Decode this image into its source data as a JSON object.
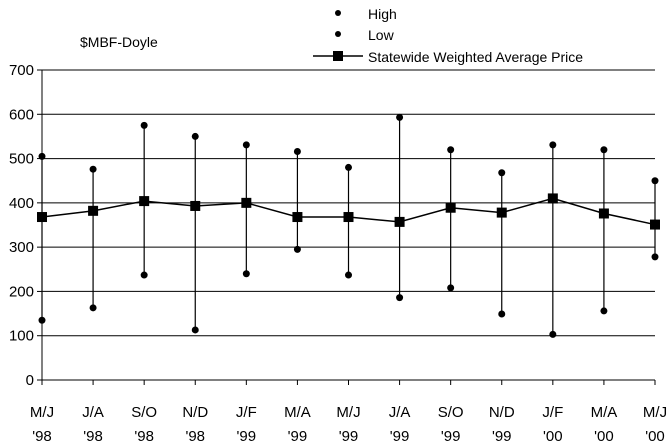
{
  "chart_data": {
    "type": "line",
    "ylabel": "$MBF-Doyle",
    "ylim": [
      0,
      700
    ],
    "yticks": [
      0,
      100,
      200,
      300,
      400,
      500,
      600,
      700
    ],
    "grid": true,
    "legend_position": "top-right",
    "categories": [
      [
        "M/J",
        "'98"
      ],
      [
        "J/A",
        "'98"
      ],
      [
        "S/O",
        "'98"
      ],
      [
        "N/D",
        "'98"
      ],
      [
        "J/F",
        "'99"
      ],
      [
        "M/A",
        "'99"
      ],
      [
        "M/J",
        "'99"
      ],
      [
        "J/A",
        "'99"
      ],
      [
        "S/O",
        "'99"
      ],
      [
        "N/D",
        "'99"
      ],
      [
        "J/F",
        "'00"
      ],
      [
        "M/A",
        "'00"
      ],
      [
        "M/J",
        "'00"
      ]
    ],
    "series": [
      {
        "name": "High",
        "marker": "dot",
        "values": [
          505,
          476,
          575,
          550,
          531,
          516,
          480,
          593,
          520,
          468,
          531,
          520,
          450
        ]
      },
      {
        "name": "Low",
        "marker": "dot",
        "values": [
          135,
          163,
          237,
          113,
          240,
          295,
          237,
          186,
          208,
          149,
          103,
          156,
          278
        ]
      },
      {
        "name": "Statewide Weighted Average Price",
        "marker": "square",
        "line": true,
        "values": [
          368,
          382,
          404,
          393,
          400,
          368,
          368,
          357,
          389,
          378,
          410,
          376,
          351
        ]
      }
    ]
  }
}
